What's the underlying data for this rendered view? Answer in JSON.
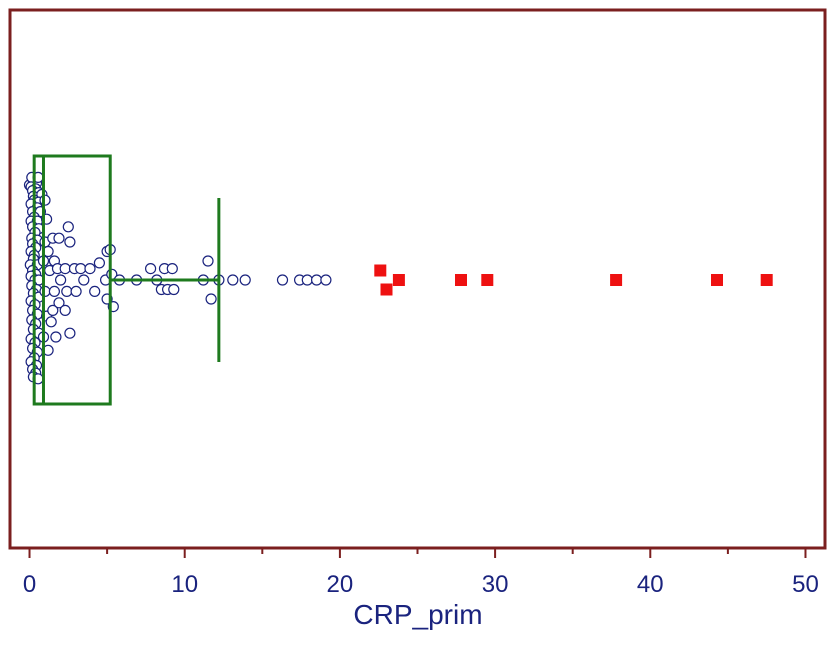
{
  "chart_data": {
    "type": "box",
    "orientation": "horizontal",
    "xlabel": "CRP_prim",
    "xlim": [
      -1,
      51
    ],
    "x_ticks": [
      0,
      10,
      20,
      30,
      40,
      50
    ],
    "x_tick_labels": [
      "0",
      "10",
      "20",
      "30",
      "40",
      "50"
    ],
    "x_minor_ticks": [
      5,
      15,
      25,
      35,
      45
    ],
    "box": {
      "q1": 0.3,
      "median": 0.9,
      "q3": 5.2,
      "whisker_low": 0.1,
      "whisker_high": 12.2
    },
    "points": [
      [
        0.0,
        0.5
      ],
      [
        0.25,
        0.51
      ],
      [
        0.45,
        0.51
      ],
      [
        0.15,
        0.54
      ],
      [
        0.55,
        0.54
      ],
      [
        0.1,
        0.49
      ],
      [
        0.4,
        0.48
      ],
      [
        0.2,
        0.47
      ],
      [
        0.6,
        0.46
      ],
      [
        0.25,
        0.44
      ],
      [
        0.8,
        0.45
      ],
      [
        0.3,
        0.42
      ],
      [
        0.6,
        0.41
      ],
      [
        0.1,
        0.4
      ],
      [
        0.5,
        0.38
      ],
      [
        0.2,
        0.36
      ],
      [
        0.7,
        0.36
      ],
      [
        0.3,
        0.33
      ],
      [
        0.1,
        0.31
      ],
      [
        0.5,
        0.31
      ],
      [
        0.2,
        0.28
      ],
      [
        0.6,
        0.27
      ],
      [
        0.35,
        0.25
      ],
      [
        0.15,
        0.22
      ],
      [
        0.5,
        0.21
      ],
      [
        0.2,
        0.19
      ],
      [
        0.4,
        0.17
      ],
      [
        0.1,
        0.15
      ],
      [
        0.3,
        0.13
      ],
      [
        0.25,
        0.11
      ],
      [
        0.05,
        0.08
      ],
      [
        0.5,
        0.08
      ],
      [
        0.2,
        0.05
      ],
      [
        0.4,
        0.03
      ],
      [
        0.1,
        0.02
      ],
      [
        0.35,
        0.0
      ],
      [
        0.6,
        0.0
      ],
      [
        0.15,
        -0.03
      ],
      [
        0.45,
        -0.05
      ],
      [
        0.25,
        -0.07
      ],
      [
        0.6,
        -0.09
      ],
      [
        0.1,
        -0.11
      ],
      [
        0.35,
        -0.13
      ],
      [
        0.2,
        -0.16
      ],
      [
        0.5,
        -0.18
      ],
      [
        0.15,
        -0.21
      ],
      [
        0.4,
        -0.23
      ],
      [
        0.25,
        -0.26
      ],
      [
        0.6,
        -0.28
      ],
      [
        0.1,
        -0.31
      ],
      [
        0.35,
        -0.33
      ],
      [
        0.2,
        -0.36
      ],
      [
        0.5,
        -0.38
      ],
      [
        0.3,
        -0.41
      ],
      [
        0.1,
        -0.43
      ],
      [
        0.45,
        -0.45
      ],
      [
        0.2,
        -0.47
      ],
      [
        0.4,
        -0.49
      ],
      [
        0.25,
        -0.51
      ],
      [
        0.55,
        -0.52
      ],
      [
        1.1,
        0.32
      ],
      [
        1.0,
        0.2
      ],
      [
        0.9,
        0.1
      ],
      [
        1.0,
        -0.06
      ],
      [
        1.1,
        -0.19
      ],
      [
        0.9,
        -0.3
      ],
      [
        1.2,
        -0.37
      ],
      [
        1.0,
        0.42
      ],
      [
        1.3,
        0.05
      ],
      [
        1.4,
        -0.22
      ],
      [
        1.2,
        0.15
      ],
      [
        1.5,
        0.22
      ],
      [
        1.6,
        0.1
      ],
      [
        1.8,
        0.06
      ],
      [
        1.6,
        -0.06
      ],
      [
        1.5,
        -0.16
      ],
      [
        1.7,
        -0.3
      ],
      [
        1.9,
        0.22
      ],
      [
        2.0,
        0.0
      ],
      [
        1.9,
        -0.12
      ],
      [
        2.3,
        0.06
      ],
      [
        2.4,
        -0.06
      ],
      [
        2.3,
        -0.16
      ],
      [
        2.6,
        0.2
      ],
      [
        2.5,
        0.28
      ],
      [
        2.6,
        -0.28
      ],
      [
        2.9,
        0.06
      ],
      [
        3.0,
        -0.06
      ],
      [
        3.3,
        0.06
      ],
      [
        3.5,
        0.0
      ],
      [
        3.9,
        0.06
      ],
      [
        4.2,
        -0.06
      ],
      [
        4.5,
        0.09
      ],
      [
        4.9,
        0.0
      ],
      [
        5.0,
        0.15
      ],
      [
        5.0,
        -0.1
      ],
      [
        5.3,
        0.03
      ],
      [
        5.2,
        0.16
      ],
      [
        5.4,
        -0.14
      ],
      [
        5.8,
        0.0
      ],
      [
        6.9,
        0.0
      ],
      [
        7.8,
        0.06
      ],
      [
        8.2,
        0.0
      ],
      [
        8.5,
        -0.05
      ],
      [
        8.7,
        0.06
      ],
      [
        8.9,
        -0.05
      ],
      [
        9.2,
        0.06
      ],
      [
        9.3,
        -0.05
      ],
      [
        11.2,
        0.0
      ],
      [
        11.5,
        0.1
      ],
      [
        11.7,
        -0.1
      ],
      [
        12.2,
        0.0
      ],
      [
        13.1,
        0.0
      ],
      [
        13.9,
        0.0
      ],
      [
        16.3,
        0.0
      ],
      [
        17.4,
        0.0
      ],
      [
        17.9,
        0.0
      ],
      [
        18.5,
        0.0
      ],
      [
        19.1,
        0.0
      ]
    ],
    "outliers": [
      [
        22.6,
        0.05
      ],
      [
        23.0,
        -0.05
      ],
      [
        23.8,
        0.0
      ],
      [
        27.8,
        0.0
      ],
      [
        29.5,
        0.0
      ],
      [
        37.8,
        0.0
      ],
      [
        44.3,
        0.0
      ],
      [
        47.5,
        0.0
      ]
    ],
    "colors": {
      "frame": "#7b1f1f",
      "box": "#1e7a1e",
      "point_stroke": "#1a237e",
      "point_fill": "#ffffff",
      "outlier": "#ee1111",
      "text": "#1a237e"
    }
  }
}
